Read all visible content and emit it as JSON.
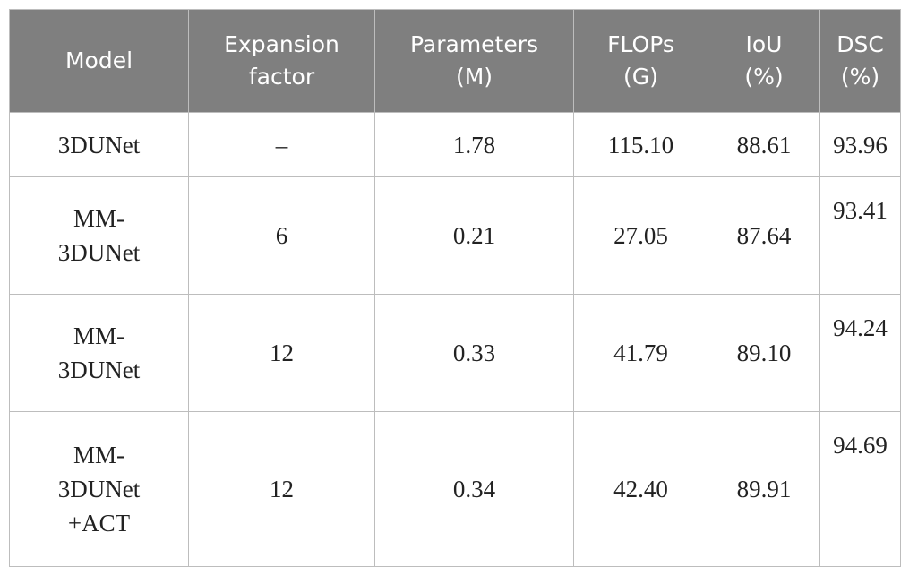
{
  "table": {
    "header": [
      "Model",
      "Expansion factor",
      "Parameters (M)",
      "FLOPs (G)",
      "IoU (%)",
      "DSC (%)"
    ],
    "rows": [
      [
        "3DUNet",
        "–",
        "1.78",
        "115.10",
        "88.61",
        "93.96"
      ],
      [
        "MM-3DUNet",
        "6",
        "0.21",
        "27.05",
        "87.64",
        "93.41"
      ],
      [
        "MM-3DUNet",
        "12",
        "0.33",
        "41.79",
        "89.10",
        "94.24"
      ],
      [
        "MM-3DUNet +ACT",
        "12",
        "0.34",
        "42.40",
        "89.91",
        "94.69"
      ]
    ]
  }
}
